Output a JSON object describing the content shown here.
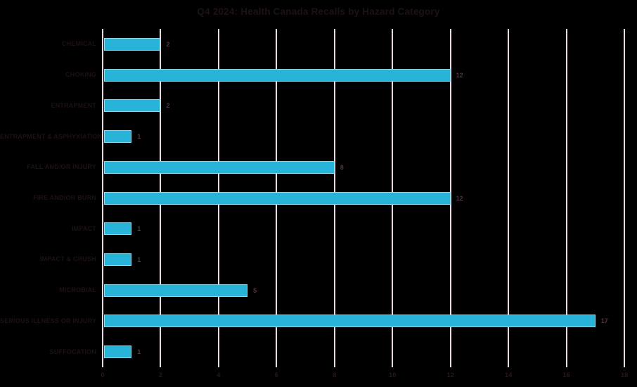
{
  "chart_data": {
    "type": "bar",
    "orientation": "horizontal",
    "title": "Q4 2024: Health Canada Recalls by Hazard Category",
    "categories": [
      "CHEMICAL",
      "CHOKING",
      "ENTRAPMENT",
      "ENTRAPMENT & ASPHYXIATION",
      "FALL AND/OR INJURY",
      "FIRE AND/OR BURN",
      "IMPACT",
      "IMPACT & CRUSH",
      "MICROBIAL",
      "SERIOUS ILLNESS OR INJURY",
      "SUFFOCATION"
    ],
    "values": [
      2,
      12,
      2,
      1,
      8,
      12,
      1,
      1,
      5,
      17,
      1
    ],
    "xlabel": "",
    "ylabel": "",
    "xlim": [
      0,
      18
    ],
    "xticks": [
      0,
      2,
      4,
      6,
      8,
      10,
      12,
      14,
      16,
      18
    ],
    "grid": "vertical-only",
    "legend": "none",
    "data_labels": "end-of-bar",
    "colors": {
      "background": "#000000",
      "bar_fill": "#27b4d8",
      "bar_edge": "#bfeaf4",
      "gridline": "#e9dae4",
      "title_text": "#1d1114",
      "category_text": "#1d1114",
      "value_text": "#543247",
      "tick_text": "#2a151b"
    }
  }
}
